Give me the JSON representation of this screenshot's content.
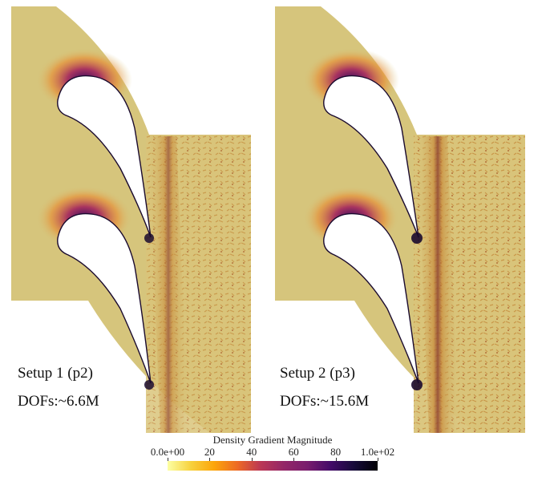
{
  "panels": [
    {
      "setup": "Setup 1 (p2)",
      "dofs": "DOFs:~6.6M"
    },
    {
      "setup": "Setup 2 (p3)",
      "dofs": "DOFs:~15.6M"
    }
  ],
  "colorbar": {
    "title": "Density Gradient Magnitude",
    "ticks": [
      "0.0e+00",
      "20",
      "40",
      "60",
      "80",
      "1.0e+02"
    ],
    "tick_values": [
      0,
      20,
      40,
      60,
      80,
      100
    ],
    "range": [
      0,
      100
    ],
    "colormap": "inferno"
  },
  "colors": {
    "field_background": "#d6c57c",
    "wake": "#b9782e",
    "shock": "#1a0a2e"
  }
}
